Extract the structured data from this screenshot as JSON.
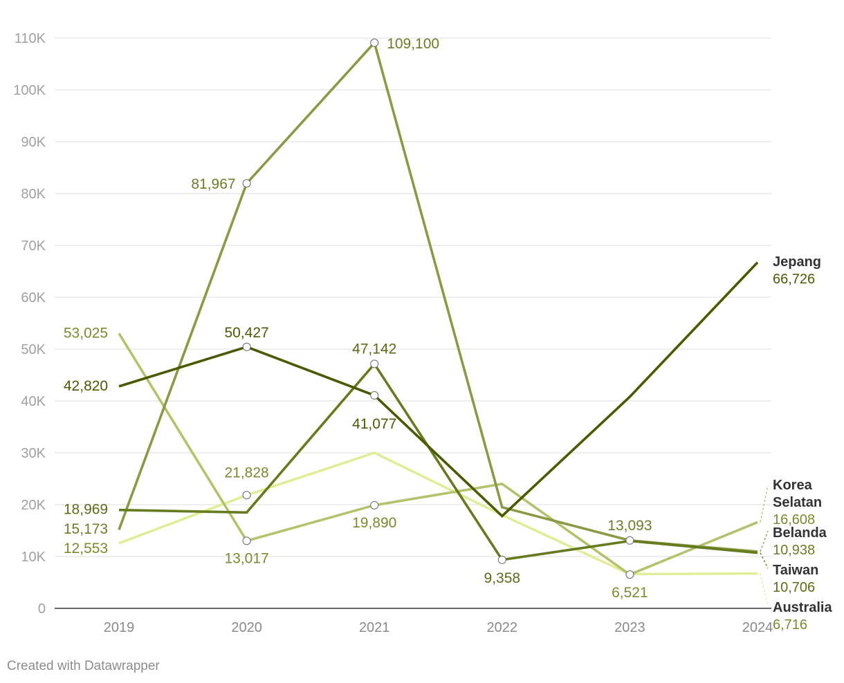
{
  "chart_data": {
    "type": "line",
    "x": [
      "2019",
      "2020",
      "2021",
      "2022",
      "2023",
      "2024"
    ],
    "y_ticks": [
      "0",
      "10K",
      "20K",
      "30K",
      "40K",
      "50K",
      "60K",
      "70K",
      "80K",
      "90K",
      "100K",
      "110K"
    ],
    "ylim": [
      0,
      110000
    ],
    "grid": true,
    "legend": "direct labels at right end of lines",
    "series": [
      {
        "name": "Jepang",
        "end_value_label": "66,726",
        "color": "#4a5a00",
        "values": [
          42820,
          50427,
          41077,
          17800,
          40800,
          66726
        ],
        "point_labels": [
          "42,820",
          "50,427",
          "41,077",
          null,
          null,
          null
        ]
      },
      {
        "name": "Korea Selatan",
        "name_lines": [
          "Korea",
          "Selatan"
        ],
        "end_value_label": "16,608",
        "color": "#b5c16b",
        "values": [
          53025,
          13017,
          19890,
          24000,
          6521,
          16608
        ],
        "point_labels": [
          "53,025",
          "13,017",
          "19,890",
          null,
          "6,521",
          null
        ]
      },
      {
        "name": "Belanda",
        "end_value_label": "10,938",
        "color": "#8a9a44",
        "values": [
          15173,
          81967,
          109100,
          19500,
          13093,
          10938
        ],
        "point_labels": [
          "15,173",
          "81,967",
          "109,100",
          null,
          "13,093",
          null
        ]
      },
      {
        "name": "Taiwan",
        "end_value_label": "10,706",
        "color": "#667a1e",
        "values": [
          18969,
          18500,
          47142,
          9358,
          13000,
          10706
        ],
        "point_labels": [
          "18,969",
          null,
          "47,142",
          "9,358",
          null,
          null
        ]
      },
      {
        "name": "Australia",
        "end_value_label": "6,716",
        "color": "#e2ec96",
        "values": [
          12553,
          21828,
          30000,
          18000,
          6600,
          6716
        ],
        "point_labels": [
          "12,553",
          "21,828",
          null,
          null,
          null,
          null
        ]
      }
    ]
  },
  "footer": {
    "credit": "Created with Datawrapper"
  }
}
